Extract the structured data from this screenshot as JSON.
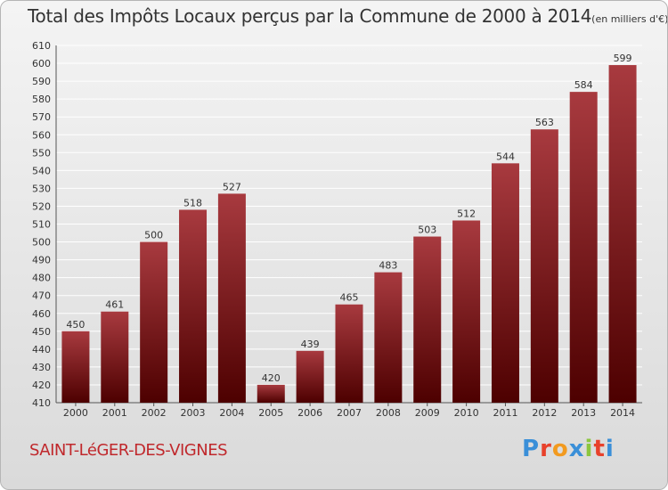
{
  "title": "Total des Impôts Locaux perçus par la Commune de 2000 à 2014",
  "subtitle": "(en milliers d'€)",
  "commune": "SAINT-LéGER-DES-VIGNES",
  "logo": {
    "letters": [
      "P",
      "r",
      "o",
      "x",
      "i",
      "t",
      "i"
    ],
    "colors": [
      "#3a8fd8",
      "#e8412b",
      "#f29a1f",
      "#3a8fd8",
      "#8cc63f",
      "#e8412b",
      "#3a8fd8"
    ]
  },
  "colors": {
    "bar_top": "#a83a3f",
    "bar_bottom": "#4d0000",
    "grid": "#ffffff"
  },
  "chart_data": {
    "type": "bar",
    "categories": [
      "2000",
      "2001",
      "2002",
      "2003",
      "2004",
      "2005",
      "2006",
      "2007",
      "2008",
      "2009",
      "2010",
      "2011",
      "2012",
      "2013",
      "2014"
    ],
    "values": [
      450,
      461,
      500,
      518,
      527,
      420,
      439,
      465,
      483,
      503,
      512,
      544,
      563,
      584,
      599
    ],
    "ylim": [
      410,
      610
    ],
    "yticks": [
      410,
      420,
      430,
      440,
      450,
      460,
      470,
      480,
      490,
      500,
      510,
      520,
      530,
      540,
      550,
      560,
      570,
      580,
      590,
      600,
      610
    ],
    "grid": true
  }
}
